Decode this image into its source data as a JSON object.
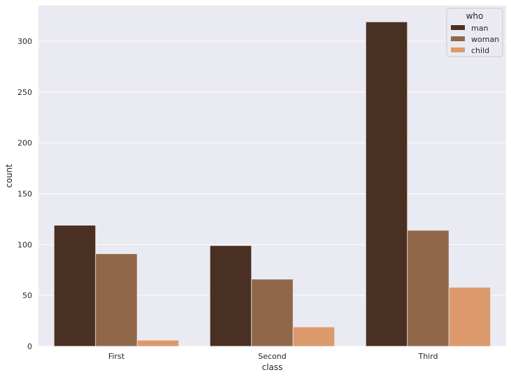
{
  "chart_data": {
    "type": "bar",
    "categories": [
      "First",
      "Second",
      "Third"
    ],
    "series": [
      {
        "name": "man",
        "values": [
          119,
          99,
          319
        ],
        "color": "#4a3022"
      },
      {
        "name": "woman",
        "values": [
          91,
          66,
          114
        ],
        "color": "#91674a"
      },
      {
        "name": "child",
        "values": [
          6,
          19,
          58
        ],
        "color": "#dc9a6c"
      }
    ],
    "xlabel": "class",
    "ylabel": "count",
    "ylim": [
      0,
      335
    ],
    "yticks": [
      0,
      50,
      100,
      150,
      200,
      250,
      300
    ],
    "grid": true,
    "legend": {
      "title": "who",
      "placement": "top-right"
    },
    "background": "#eaeaf2"
  }
}
